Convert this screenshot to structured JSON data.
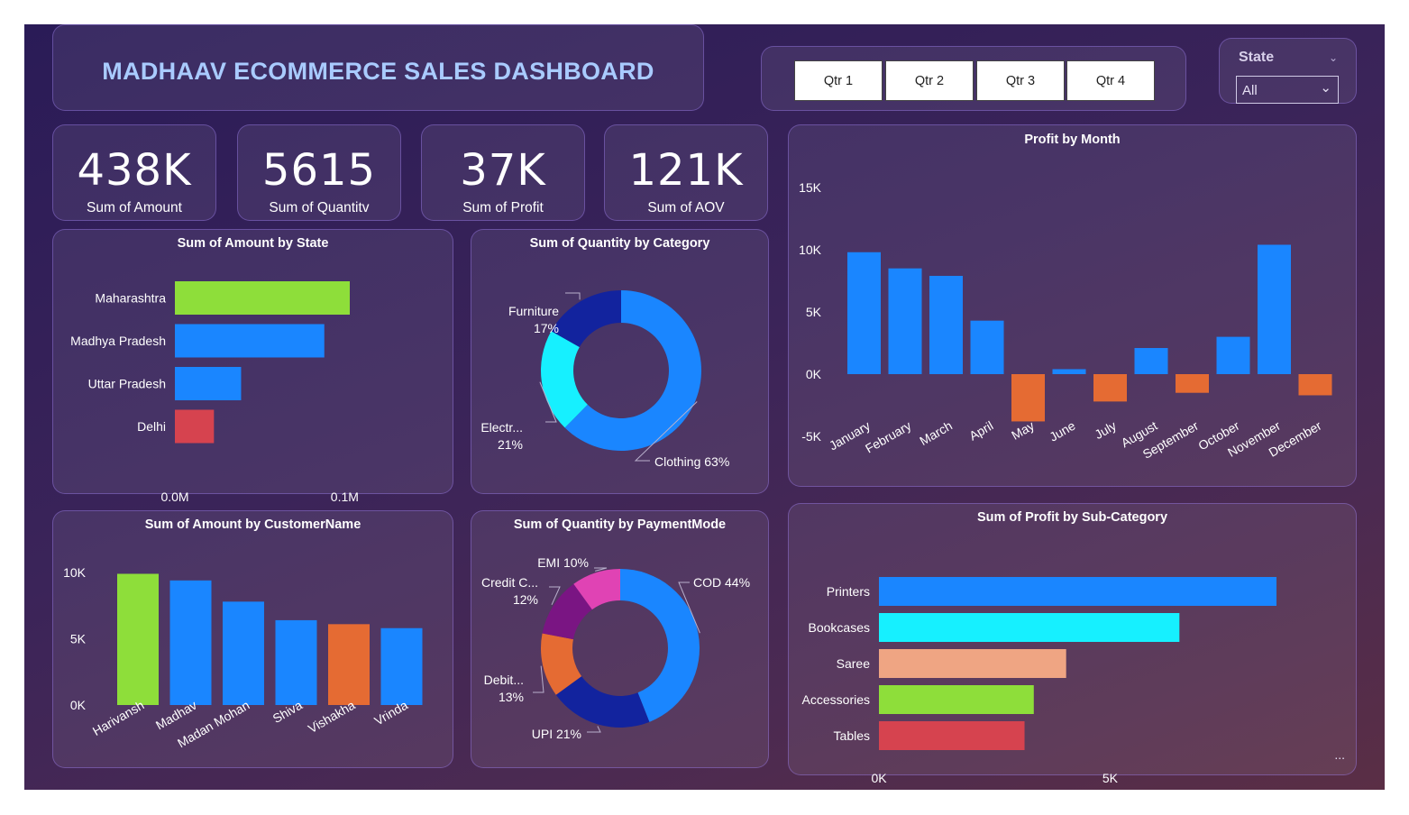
{
  "header": {
    "title": "MADHAAV ECOMMERCE SALES DASHBOARD"
  },
  "quarters": [
    "Qtr 1",
    "Qtr 2",
    "Qtr 3",
    "Qtr 4"
  ],
  "slicer": {
    "label": "State",
    "value": "All"
  },
  "kpis": [
    {
      "value": "438K",
      "label": "Sum of Amount"
    },
    {
      "value": "5615",
      "label": "Sum of Quantitv"
    },
    {
      "value": "37K",
      "label": "Sum of Profit"
    },
    {
      "value": "121K",
      "label": "Sum of AOV"
    }
  ],
  "colors": {
    "blue": "#1a86ff",
    "green": "#8ede3a",
    "red": "#d6434f",
    "orange": "#e56b33",
    "cyan": "#16f0ff",
    "navy": "#12239e",
    "peach": "#efa583",
    "purple": "#7a1583",
    "pink": "#e043b4"
  },
  "chart_data": [
    {
      "id": "amount_by_state",
      "type": "bar",
      "orientation": "horizontal",
      "title": "Sum of Amount by State",
      "categories": [
        "Maharashtra",
        "Madhya Pradesh",
        "Uttar Pradesh",
        "Delhi"
      ],
      "values": [
        0.103,
        0.088,
        0.039,
        0.023
      ],
      "colors": [
        "#8ede3a",
        "#1a86ff",
        "#1a86ff",
        "#d6434f"
      ],
      "ticks": [
        {
          "v": 0,
          "label": "0.0M"
        },
        {
          "v": 0.1,
          "label": "0.1M"
        }
      ],
      "xlim": [
        0,
        0.103
      ]
    },
    {
      "id": "qty_by_category",
      "type": "pie",
      "donut": true,
      "title": "Sum of Quantity by Category",
      "slices": [
        {
          "label": "Clothing 63%",
          "value": 63,
          "color": "#1a86ff"
        },
        {
          "label": "Electr...\n21%",
          "value": 21,
          "color": "#16f0ff"
        },
        {
          "label": "Furniture\n17%",
          "value": 17,
          "color": "#12239e"
        }
      ]
    },
    {
      "id": "profit_by_month",
      "type": "bar",
      "title": "Profit by Month",
      "categories": [
        "January",
        "February",
        "March",
        "April",
        "May",
        "June",
        "July",
        "August",
        "September",
        "October",
        "November",
        "December"
      ],
      "values": [
        9800,
        8500,
        7900,
        4300,
        -3800,
        400,
        -2200,
        2100,
        -1500,
        3000,
        10400,
        -1700
      ],
      "ylim": [
        -5000,
        15000
      ],
      "ticks": [
        {
          "v": 15000,
          "label": "15K"
        },
        {
          "v": 10000,
          "label": "10K"
        },
        {
          "v": 5000,
          "label": "5K"
        },
        {
          "v": 0,
          "label": "0K"
        },
        {
          "v": -5000,
          "label": "-5K"
        }
      ],
      "pos_color": "#1a86ff",
      "neg_color": "#e56b33"
    },
    {
      "id": "amount_by_customer",
      "type": "bar",
      "title": "Sum of Amount by CustomerName",
      "categories": [
        "Harivansh",
        "Madhav",
        "Madan Mohan",
        "Shiva",
        "Vishakha",
        "Vrinda"
      ],
      "values": [
        9900,
        9400,
        7800,
        6400,
        6100,
        5800
      ],
      "colors": [
        "#8ede3a",
        "#1a86ff",
        "#1a86ff",
        "#1a86ff",
        "#e56b33",
        "#1a86ff"
      ],
      "ylim": [
        0,
        10000
      ],
      "ticks": [
        {
          "v": 10000,
          "label": "10K"
        },
        {
          "v": 5000,
          "label": "5K"
        },
        {
          "v": 0,
          "label": "0K"
        }
      ]
    },
    {
      "id": "qty_by_paymentmode",
      "type": "pie",
      "donut": true,
      "title": "Sum of Quantity by PaymentMode",
      "slices": [
        {
          "label": "COD 44%",
          "value": 44,
          "color": "#1a86ff"
        },
        {
          "label": "UPI 21%",
          "value": 21,
          "color": "#12239e"
        },
        {
          "label": "Debit...\n13%",
          "value": 13,
          "color": "#e56b33"
        },
        {
          "label": "Credit C...\n12%",
          "value": 12,
          "color": "#7a1583"
        },
        {
          "label": "EMI 10%",
          "value": 10,
          "color": "#e043b4"
        }
      ]
    },
    {
      "id": "profit_by_subcategory",
      "type": "bar",
      "orientation": "horizontal",
      "title": "Sum of Profit by Sub-Category",
      "categories": [
        "Printers",
        "Bookcases",
        "Saree",
        "Accessories",
        "Tables"
      ],
      "values": [
        8600,
        6500,
        4050,
        3350,
        3150
      ],
      "colors": [
        "#1a86ff",
        "#16f0ff",
        "#efa583",
        "#8ede3a",
        "#d6434f"
      ],
      "xlim": [
        0,
        8600
      ],
      "ticks": [
        {
          "v": 0,
          "label": "0K"
        },
        {
          "v": 5000,
          "label": "5K"
        }
      ],
      "more": "..."
    }
  ]
}
